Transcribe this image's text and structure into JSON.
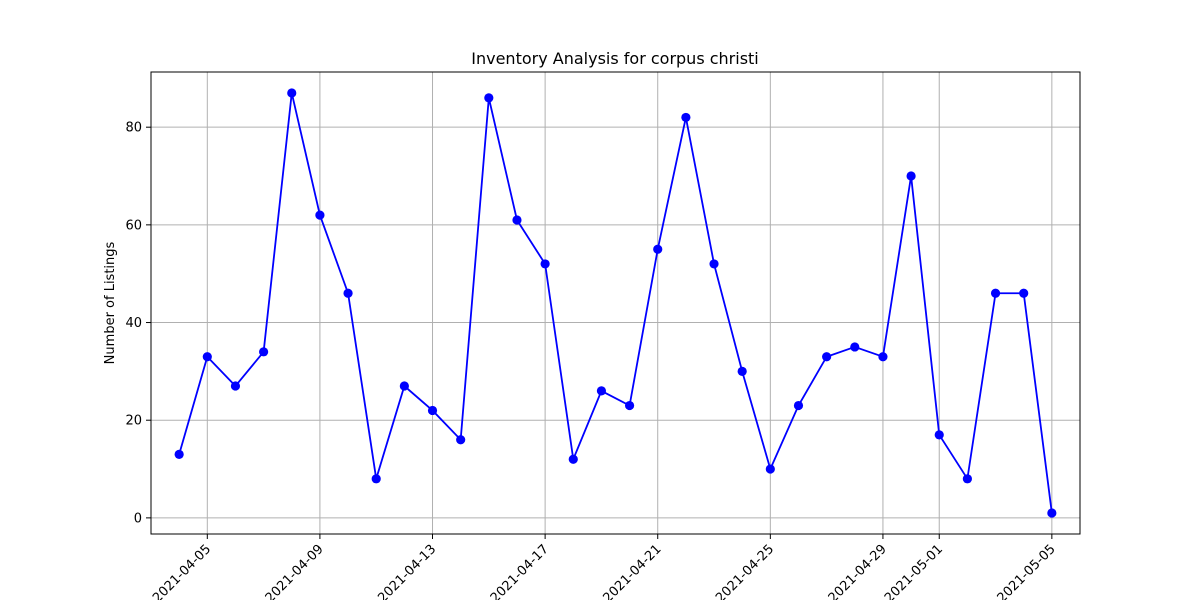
{
  "chart_data": {
    "type": "line",
    "title": "Inventory Analysis for corpus christi",
    "xlabel": "",
    "ylabel": "Number of Listings",
    "x": [
      "2021-04-04",
      "2021-04-05",
      "2021-04-06",
      "2021-04-07",
      "2021-04-08",
      "2021-04-09",
      "2021-04-10",
      "2021-04-11",
      "2021-04-12",
      "2021-04-13",
      "2021-04-14",
      "2021-04-15",
      "2021-04-16",
      "2021-04-17",
      "2021-04-18",
      "2021-04-19",
      "2021-04-20",
      "2021-04-21",
      "2021-04-22",
      "2021-04-23",
      "2021-04-24",
      "2021-04-25",
      "2021-04-26",
      "2021-04-27",
      "2021-04-28",
      "2021-04-29",
      "2021-04-30",
      "2021-05-01",
      "2021-05-02",
      "2021-05-03",
      "2021-05-04",
      "2021-05-05"
    ],
    "series": [
      {
        "color": "#0000ff",
        "marker": "circle",
        "values": [
          13,
          33,
          27,
          34,
          87,
          62,
          46,
          8,
          27,
          22,
          16,
          86,
          61,
          52,
          12,
          26,
          23,
          55,
          82,
          52,
          30,
          10,
          23,
          33,
          35,
          33,
          70,
          17,
          8,
          46,
          46,
          1
        ]
      }
    ],
    "xticks": [
      "2021-04-05",
      "2021-04-09",
      "2021-04-13",
      "2021-04-17",
      "2021-04-21",
      "2021-04-25",
      "2021-04-29",
      "2021-05-01",
      "2021-05-05"
    ],
    "yticks": [
      0,
      20,
      40,
      60,
      80
    ],
    "xlim": [
      "2021-04-03",
      "2021-05-06"
    ],
    "ylim": [
      -3.3,
      91.3
    ],
    "grid": true,
    "legend": "none"
  }
}
